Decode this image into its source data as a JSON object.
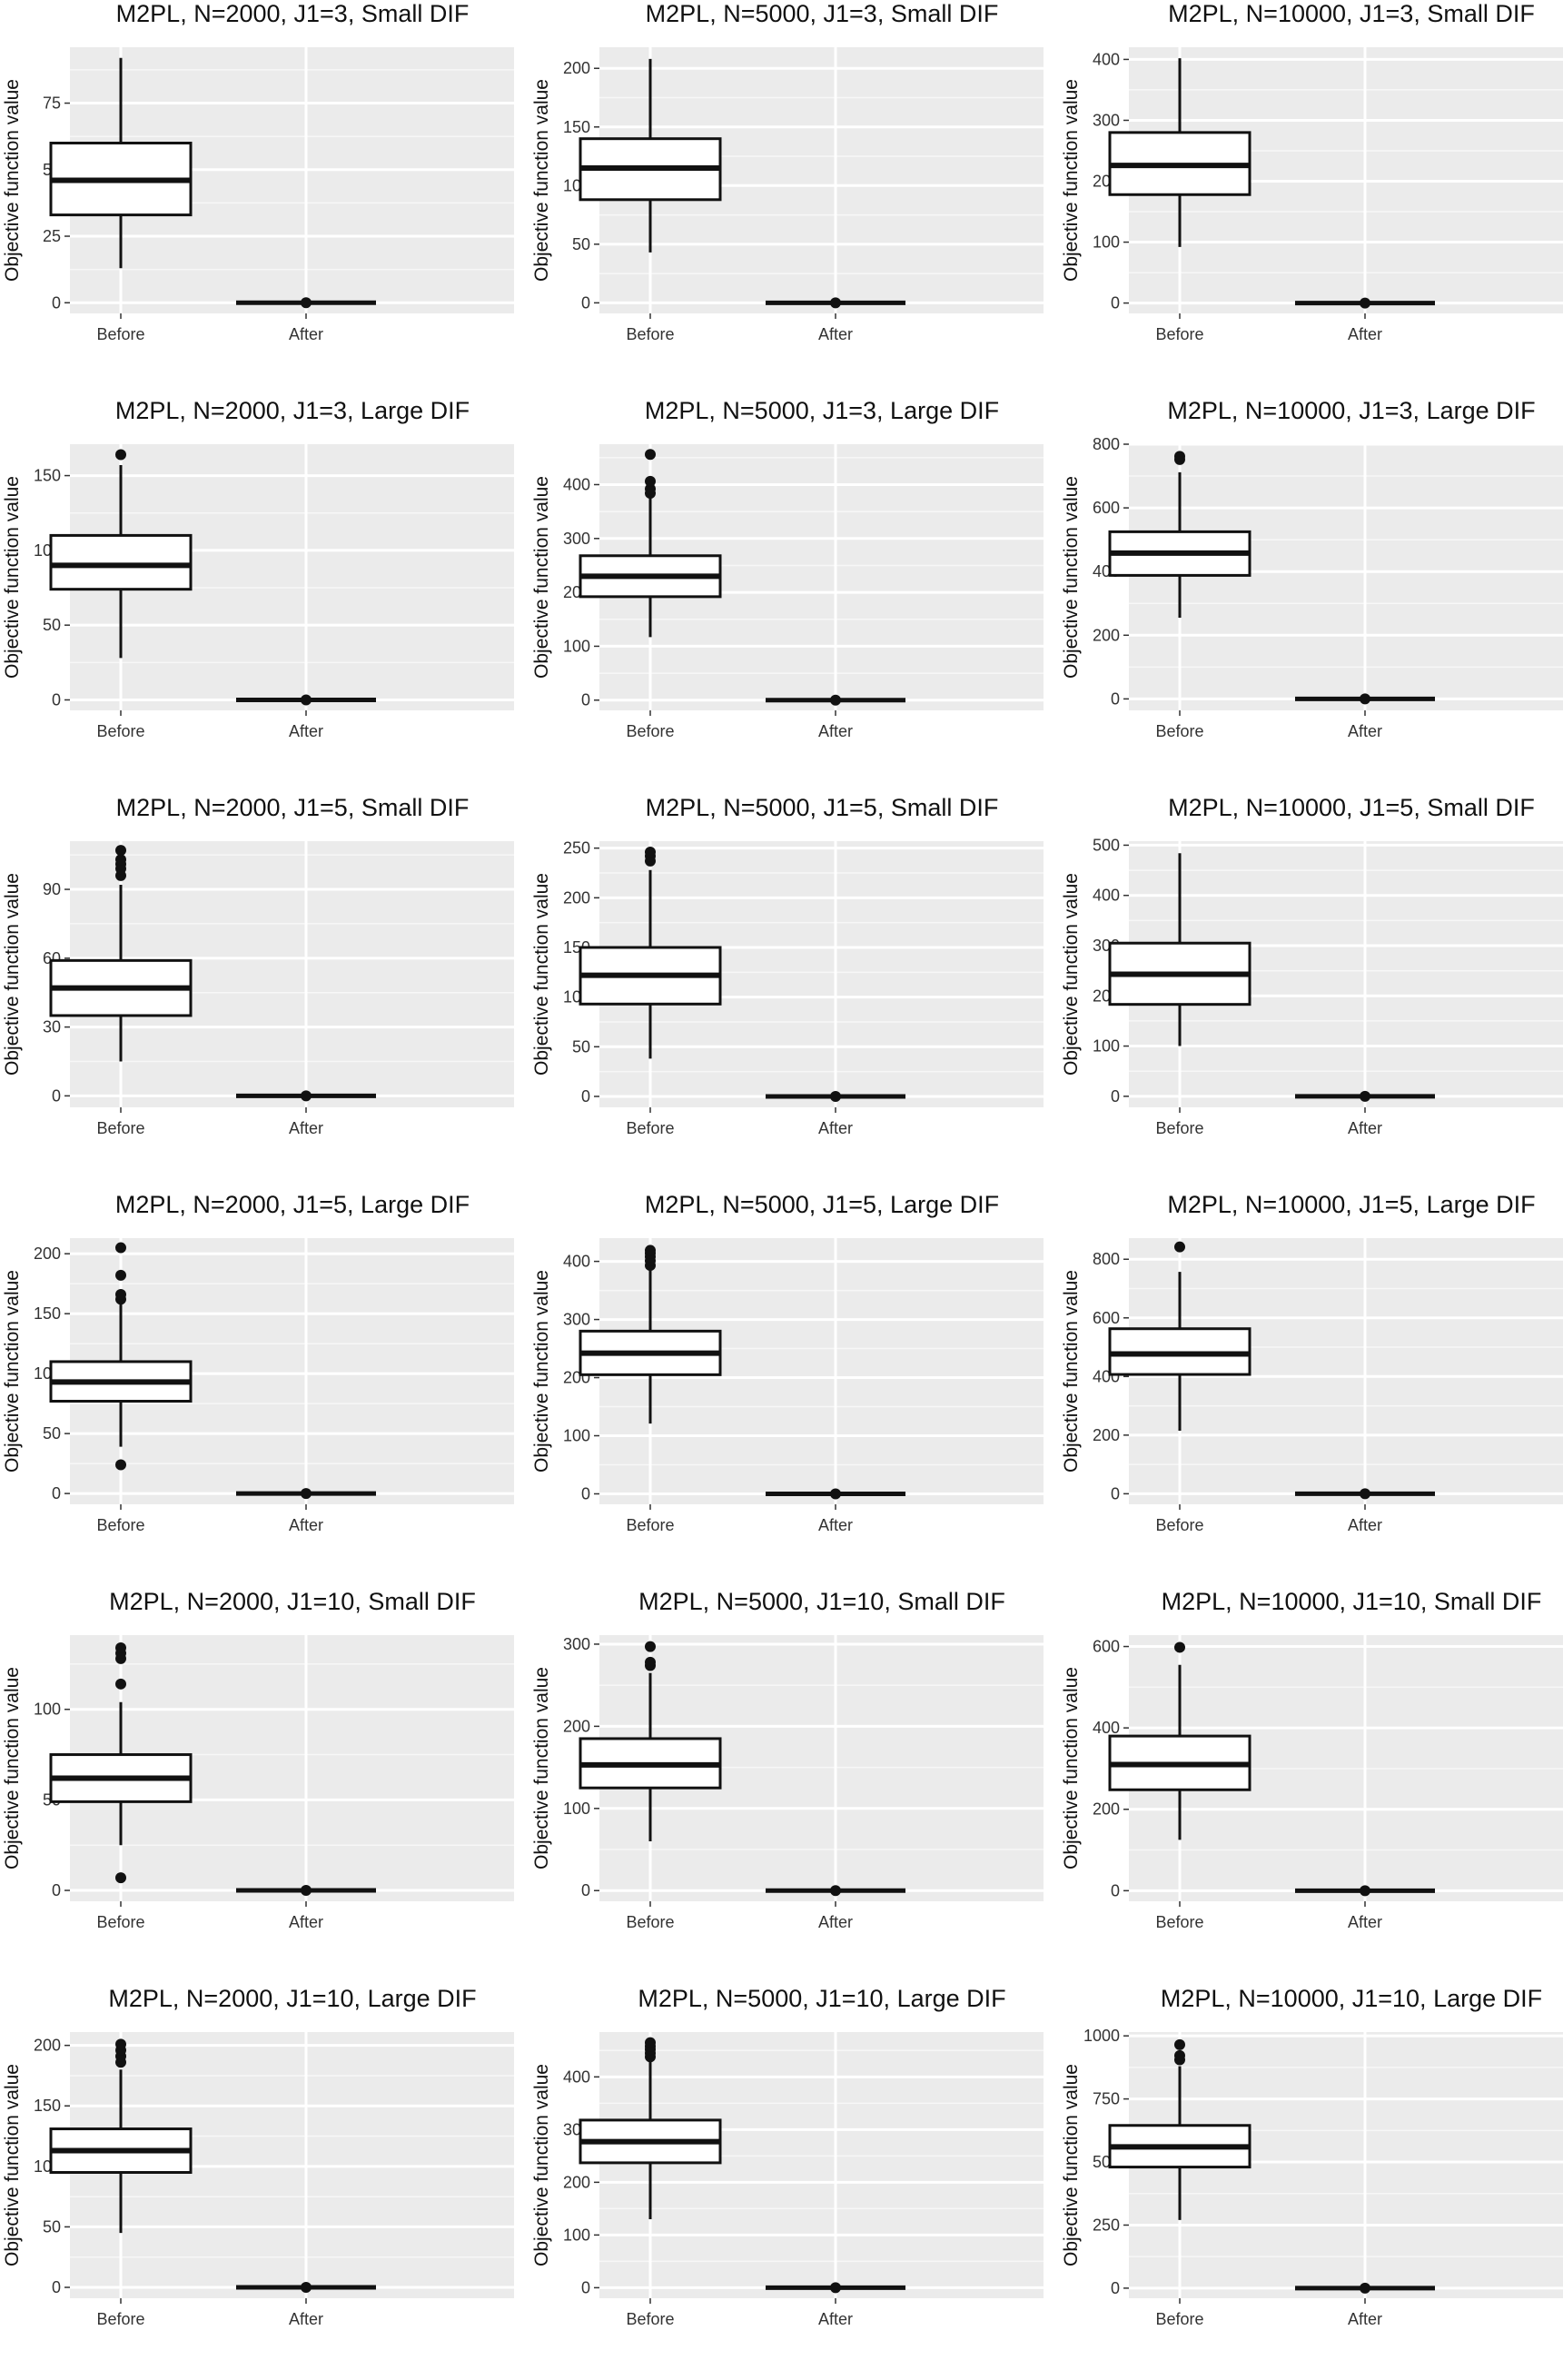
{
  "figure": {
    "ylabel": "Objective function value",
    "categories": [
      "Before",
      "After"
    ]
  },
  "chart_data": [
    {
      "type": "box",
      "title": "M2PL, N=2000, J1=3, Small DIF",
      "categories": [
        "Before",
        "After"
      ],
      "xlabel": "",
      "ylabel": "Objective function value",
      "ylim": [
        -4,
        96
      ],
      "yticks": [
        0,
        25,
        50,
        75
      ],
      "series": [
        {
          "name": "Before",
          "min": 13,
          "q1": 33,
          "median": 46,
          "q3": 60,
          "max": 92,
          "outliers": []
        },
        {
          "name": "After",
          "min": 0,
          "q1": 0,
          "median": 0,
          "q3": 0,
          "max": 0,
          "outliers": [
            0
          ]
        }
      ]
    },
    {
      "type": "box",
      "title": "M2PL, N=5000, J1=3, Small DIF",
      "categories": [
        "Before",
        "After"
      ],
      "xlabel": "",
      "ylabel": "Objective function value",
      "ylim": [
        -9,
        218
      ],
      "yticks": [
        0,
        50,
        100,
        150,
        200
      ],
      "series": [
        {
          "name": "Before",
          "min": 43,
          "q1": 88,
          "median": 115,
          "q3": 140,
          "max": 208,
          "outliers": []
        },
        {
          "name": "After",
          "min": 0,
          "q1": 0,
          "median": 0,
          "q3": 0,
          "max": 0,
          "outliers": [
            0
          ]
        }
      ]
    },
    {
      "type": "box",
      "title": "M2PL, N=10000, J1=3, Small DIF",
      "categories": [
        "Before",
        "After"
      ],
      "xlabel": "",
      "ylabel": "Objective function value",
      "ylim": [
        -17,
        420
      ],
      "yticks": [
        0,
        100,
        200,
        300,
        400
      ],
      "series": [
        {
          "name": "Before",
          "min": 92,
          "q1": 178,
          "median": 226,
          "q3": 280,
          "max": 402,
          "outliers": []
        },
        {
          "name": "After",
          "min": 0,
          "q1": 0,
          "median": 0,
          "q3": 0,
          "max": 0,
          "outliers": [
            0
          ]
        }
      ]
    },
    {
      "type": "box",
      "title": "M2PL, N=2000, J1=3, Large DIF",
      "categories": [
        "Before",
        "After"
      ],
      "xlabel": "",
      "ylabel": "Objective function value",
      "ylim": [
        -7,
        171
      ],
      "yticks": [
        0,
        50,
        100,
        150
      ],
      "series": [
        {
          "name": "Before",
          "min": 28,
          "q1": 74,
          "median": 90,
          "q3": 110,
          "max": 157,
          "outliers": [
            164
          ]
        },
        {
          "name": "After",
          "min": 0,
          "q1": 0,
          "median": 0,
          "q3": 0,
          "max": 0,
          "outliers": [
            0
          ]
        }
      ]
    },
    {
      "type": "box",
      "title": "M2PL, N=5000, J1=3, Large DIF",
      "categories": [
        "Before",
        "After"
      ],
      "xlabel": "",
      "ylabel": "Objective function value",
      "ylim": [
        -19,
        475
      ],
      "yticks": [
        0,
        100,
        200,
        300,
        400
      ],
      "series": [
        {
          "name": "Before",
          "min": 117,
          "q1": 192,
          "median": 230,
          "q3": 268,
          "max": 378,
          "outliers": [
            384,
            392,
            406,
            456
          ]
        },
        {
          "name": "After",
          "min": 0,
          "q1": 0,
          "median": 0,
          "q3": 0,
          "max": 0,
          "outliers": [
            0
          ]
        }
      ]
    },
    {
      "type": "box",
      "title": "M2PL, N=10000, J1=3, Large DIF",
      "categories": [
        "Before",
        "After"
      ],
      "xlabel": "",
      "ylabel": "Objective function value",
      "ylim": [
        -36,
        800
      ],
      "yticks": [
        0,
        200,
        400,
        600,
        800
      ],
      "series": [
        {
          "name": "Before",
          "min": 255,
          "q1": 388,
          "median": 458,
          "q3": 525,
          "max": 712,
          "outliers": [
            752,
            762
          ]
        },
        {
          "name": "After",
          "min": 0,
          "q1": 0,
          "median": 0,
          "q3": 0,
          "max": 0,
          "outliers": [
            0
          ]
        }
      ]
    },
    {
      "type": "box",
      "title": "M2PL, N=2000, J1=5, Small DIF",
      "categories": [
        "Before",
        "After"
      ],
      "xlabel": "",
      "ylabel": "Objective function value",
      "ylim": [
        -5,
        111
      ],
      "yticks": [
        0,
        30,
        60,
        90
      ],
      "series": [
        {
          "name": "Before",
          "min": 15,
          "q1": 35,
          "median": 47,
          "q3": 59,
          "max": 92,
          "outliers": [
            96,
            99,
            101,
            103,
            107
          ]
        },
        {
          "name": "After",
          "min": 0,
          "q1": 0,
          "median": 0,
          "q3": 0,
          "max": 0,
          "outliers": [
            0
          ]
        }
      ]
    },
    {
      "type": "box",
      "title": "M2PL, N=5000, J1=5, Small DIF",
      "categories": [
        "Before",
        "After"
      ],
      "xlabel": "",
      "ylabel": "Objective function value",
      "ylim": [
        -11,
        257
      ],
      "yticks": [
        0,
        50,
        100,
        150,
        200,
        250
      ],
      "series": [
        {
          "name": "Before",
          "min": 38,
          "q1": 93,
          "median": 122,
          "q3": 150,
          "max": 228,
          "outliers": [
            237,
            242,
            246
          ]
        },
        {
          "name": "After",
          "min": 0,
          "q1": 0,
          "median": 0,
          "q3": 0,
          "max": 0,
          "outliers": [
            0
          ]
        }
      ]
    },
    {
      "type": "box",
      "title": "M2PL, N=10000, J1=5, Small DIF",
      "categories": [
        "Before",
        "After"
      ],
      "xlabel": "",
      "ylabel": "Objective function value",
      "ylim": [
        -22,
        508
      ],
      "yticks": [
        0,
        100,
        200,
        300,
        400,
        500
      ],
      "series": [
        {
          "name": "Before",
          "min": 100,
          "q1": 183,
          "median": 243,
          "q3": 305,
          "max": 484,
          "outliers": []
        },
        {
          "name": "After",
          "min": 0,
          "q1": 0,
          "median": 0,
          "q3": 0,
          "max": 0,
          "outliers": [
            0
          ]
        }
      ]
    },
    {
      "type": "box",
      "title": "M2PL, N=2000, J1=5, Large DIF",
      "categories": [
        "Before",
        "After"
      ],
      "xlabel": "",
      "ylabel": "Objective function value",
      "ylim": [
        -9,
        213
      ],
      "yticks": [
        0,
        50,
        100,
        150,
        200
      ],
      "series": [
        {
          "name": "Before",
          "min": 39,
          "q1": 77,
          "median": 93,
          "q3": 110,
          "max": 158,
          "outliers": [
            24,
            162,
            166,
            182,
            205
          ]
        },
        {
          "name": "After",
          "min": 0,
          "q1": 0,
          "median": 0,
          "q3": 0,
          "max": 0,
          "outliers": [
            0
          ]
        }
      ]
    },
    {
      "type": "box",
      "title": "M2PL, N=5000, J1=5, Large DIF",
      "categories": [
        "Before",
        "After"
      ],
      "xlabel": "",
      "ylabel": "Objective function value",
      "ylim": [
        -18,
        440
      ],
      "yticks": [
        0,
        100,
        200,
        300,
        400
      ],
      "series": [
        {
          "name": "Before",
          "min": 121,
          "q1": 205,
          "median": 242,
          "q3": 280,
          "max": 385,
          "outliers": [
            393,
            401,
            408,
            414,
            419
          ]
        },
        {
          "name": "After",
          "min": 0,
          "q1": 0,
          "median": 0,
          "q3": 0,
          "max": 0,
          "outliers": [
            0
          ]
        }
      ]
    },
    {
      "type": "box",
      "title": "M2PL, N=10000, J1=5, Large DIF",
      "categories": [
        "Before",
        "After"
      ],
      "xlabel": "",
      "ylabel": "Objective function value",
      "ylim": [
        -36,
        872
      ],
      "yticks": [
        0,
        200,
        400,
        600,
        800
      ],
      "series": [
        {
          "name": "Before",
          "min": 215,
          "q1": 407,
          "median": 477,
          "q3": 563,
          "max": 757,
          "outliers": [
            842
          ]
        },
        {
          "name": "After",
          "min": 0,
          "q1": 0,
          "median": 0,
          "q3": 0,
          "max": 0,
          "outliers": [
            0
          ]
        }
      ]
    },
    {
      "type": "box",
      "title": "M2PL, N=2000, J1=10, Small DIF",
      "categories": [
        "Before",
        "After"
      ],
      "xlabel": "",
      "ylabel": "Objective function value",
      "ylim": [
        -6,
        141
      ],
      "yticks": [
        0,
        50,
        100
      ],
      "series": [
        {
          "name": "Before",
          "min": 25,
          "q1": 49,
          "median": 62,
          "q3": 75,
          "max": 104,
          "outliers": [
            7,
            114,
            128,
            131,
            134
          ]
        },
        {
          "name": "After",
          "min": 0,
          "q1": 0,
          "median": 0,
          "q3": 0,
          "max": 0,
          "outliers": [
            0
          ]
        }
      ]
    },
    {
      "type": "box",
      "title": "M2PL, N=5000, J1=10, Small DIF",
      "categories": [
        "Before",
        "After"
      ],
      "xlabel": "",
      "ylabel": "Objective function value",
      "ylim": [
        -13,
        311
      ],
      "yticks": [
        0,
        100,
        200,
        300
      ],
      "series": [
        {
          "name": "Before",
          "min": 60,
          "q1": 125,
          "median": 153,
          "q3": 185,
          "max": 265,
          "outliers": [
            274,
            278,
            297
          ]
        },
        {
          "name": "After",
          "min": 0,
          "q1": 0,
          "median": 0,
          "q3": 0,
          "max": 0,
          "outliers": [
            0
          ]
        }
      ]
    },
    {
      "type": "box",
      "title": "M2PL, N=10000, J1=10, Small DIF",
      "categories": [
        "Before",
        "After"
      ],
      "xlabel": "",
      "ylabel": "Objective function value",
      "ylim": [
        -26,
        628
      ],
      "yticks": [
        0,
        200,
        400,
        600
      ],
      "series": [
        {
          "name": "Before",
          "min": 125,
          "q1": 248,
          "median": 310,
          "q3": 380,
          "max": 555,
          "outliers": [
            598
          ]
        },
        {
          "name": "After",
          "min": 0,
          "q1": 0,
          "median": 0,
          "q3": 0,
          "max": 0,
          "outliers": [
            0
          ]
        }
      ]
    },
    {
      "type": "box",
      "title": "M2PL, N=2000, J1=10, Large DIF",
      "categories": [
        "Before",
        "After"
      ],
      "xlabel": "",
      "ylabel": "Objective function value",
      "ylim": [
        -9,
        211
      ],
      "yticks": [
        0,
        50,
        100,
        150,
        200
      ],
      "series": [
        {
          "name": "Before",
          "min": 45,
          "q1": 95,
          "median": 113,
          "q3": 131,
          "max": 180,
          "outliers": [
            186,
            191,
            196,
            201
          ]
        },
        {
          "name": "After",
          "min": 0,
          "q1": 0,
          "median": 0,
          "q3": 0,
          "max": 0,
          "outliers": [
            0
          ]
        }
      ]
    },
    {
      "type": "box",
      "title": "M2PL, N=5000, J1=10, Large DIF",
      "categories": [
        "Before",
        "After"
      ],
      "xlabel": "",
      "ylabel": "Objective function value",
      "ylim": [
        -20,
        485
      ],
      "yticks": [
        0,
        100,
        200,
        300,
        400
      ],
      "series": [
        {
          "name": "Before",
          "min": 130,
          "q1": 237,
          "median": 277,
          "q3": 318,
          "max": 430,
          "outliers": [
            438,
            445,
            452,
            458,
            465
          ]
        },
        {
          "name": "After",
          "min": 0,
          "q1": 0,
          "median": 0,
          "q3": 0,
          "max": 0,
          "outliers": [
            0
          ]
        }
      ]
    },
    {
      "type": "box",
      "title": "M2PL, N=10000, J1=10, Large DIF",
      "categories": [
        "Before",
        "After"
      ],
      "xlabel": "",
      "ylabel": "Objective function value",
      "ylim": [
        -40,
        1015
      ],
      "yticks": [
        0,
        250,
        500,
        750,
        1000
      ],
      "series": [
        {
          "name": "Before",
          "min": 270,
          "q1": 480,
          "median": 560,
          "q3": 645,
          "max": 880,
          "outliers": [
            905,
            922,
            965
          ]
        },
        {
          "name": "After",
          "min": 0,
          "q1": 0,
          "median": 0,
          "q3": 0,
          "max": 0,
          "outliers": [
            0
          ]
        }
      ]
    }
  ]
}
